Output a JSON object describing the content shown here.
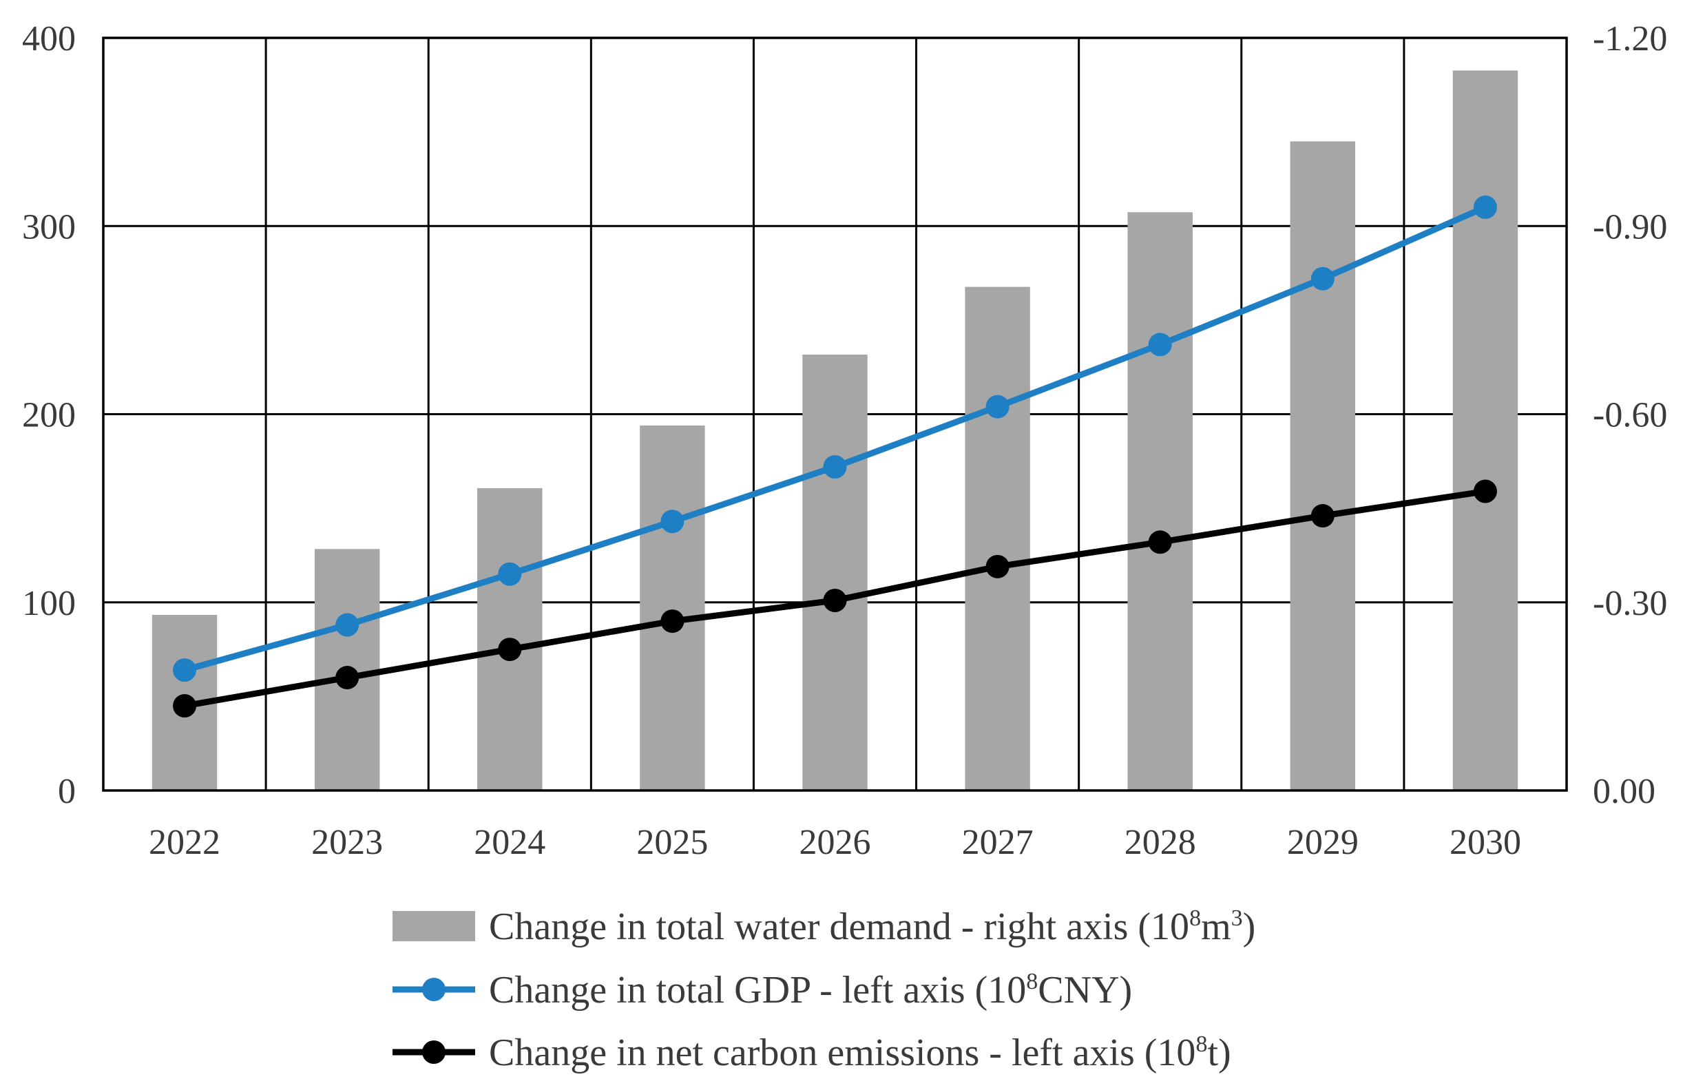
{
  "chart_data": {
    "type": "bar",
    "title": "",
    "xlabel": "",
    "ylabel": "",
    "categories": [
      "2022",
      "2023",
      "2024",
      "2025",
      "2026",
      "2027",
      "2028",
      "2029",
      "2030"
    ],
    "left_axis": {
      "ylim": [
        0,
        400
      ],
      "ticks": [
        "0",
        "100",
        "200",
        "300",
        "400"
      ]
    },
    "right_axis": {
      "ylim": [
        0,
        -1.2
      ],
      "ticks": [
        "0.00",
        "-0.30",
        "-0.60",
        "-0.90",
        "-1.20"
      ]
    },
    "grid": true,
    "legend_position": "bottom",
    "series": [
      {
        "name": "Change in total water demand - right axis",
        "unit_base": "10",
        "unit_exp": "8",
        "unit_rest": "m",
        "unit_rest_exp": "3",
        "kind": "bar",
        "axis": "right",
        "color": "#a6a6a6",
        "values": [
          -0.28,
          -0.385,
          -0.482,
          -0.582,
          -0.695,
          -0.803,
          -0.922,
          -1.035,
          -1.148
        ]
      },
      {
        "name": "Change in total GDP - left axis",
        "unit_base": "10",
        "unit_exp": "8",
        "unit_rest": "CNY",
        "kind": "line",
        "axis": "left",
        "color": "#1f7fc4",
        "values": [
          64,
          88,
          115,
          143,
          172,
          204,
          237,
          272,
          310
        ]
      },
      {
        "name": "Change in net carbon emissions - left axis",
        "unit_base": "10",
        "unit_exp": "8",
        "unit_rest": "t",
        "kind": "line",
        "axis": "left",
        "color": "#000000",
        "values": [
          45,
          60,
          75,
          90,
          101,
          119,
          132,
          146,
          159
        ]
      }
    ]
  }
}
